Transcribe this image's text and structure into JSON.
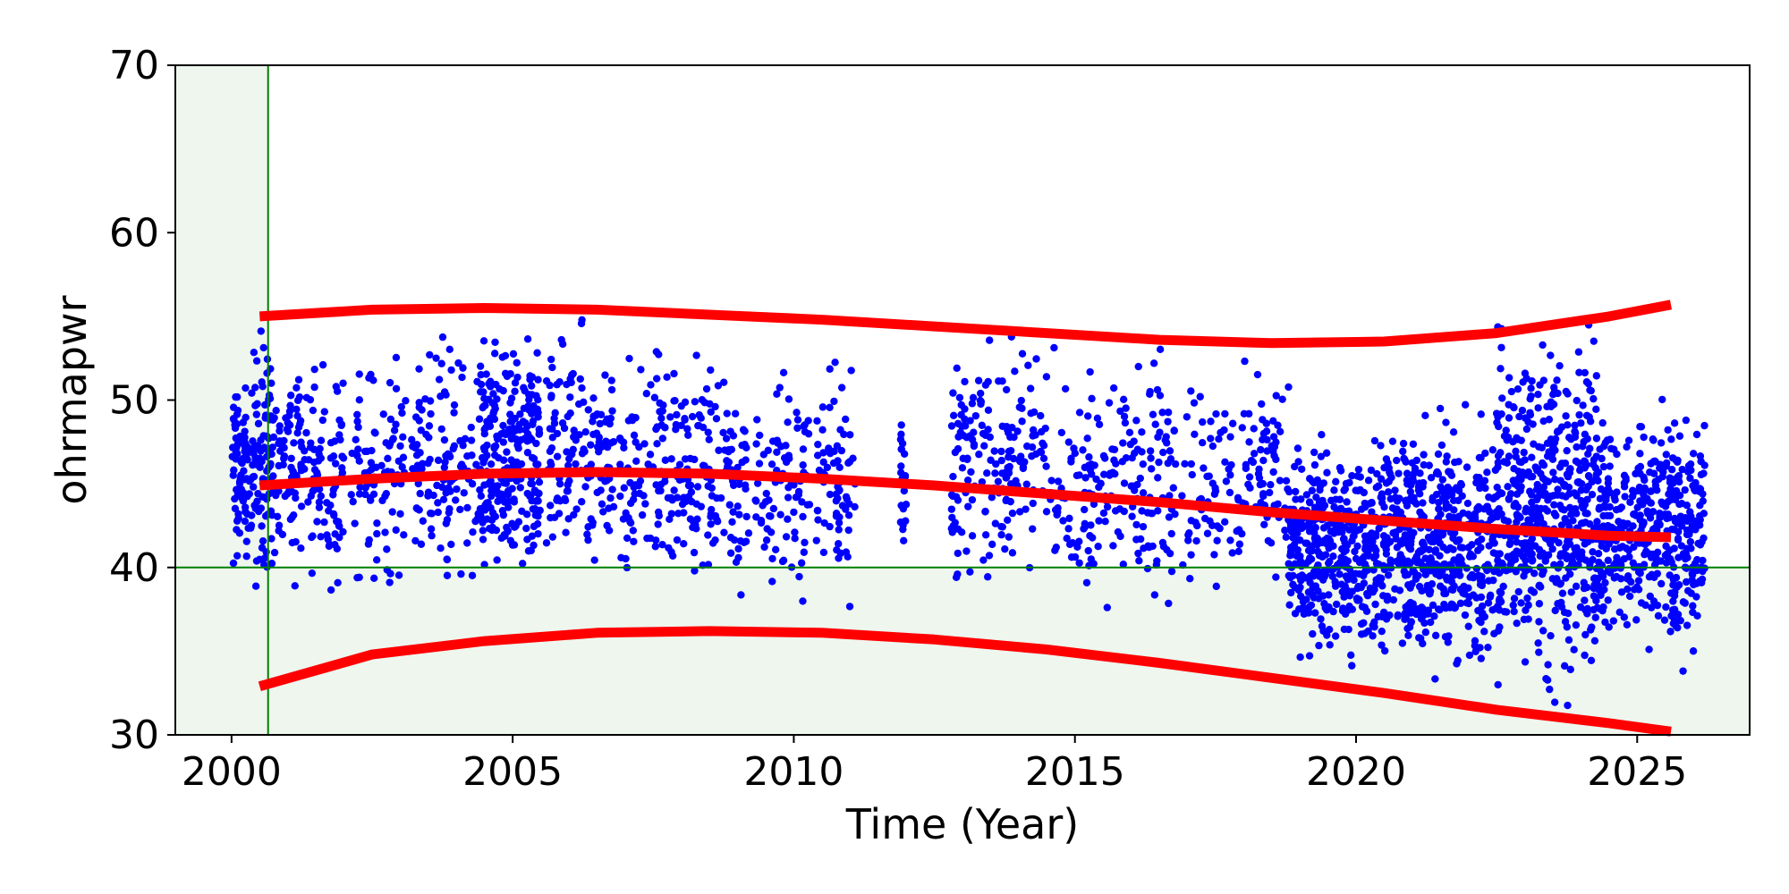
{
  "chart_data": {
    "type": "scatter",
    "title": "",
    "xlabel": "Time (Year)",
    "ylabel": "ohrmapwr",
    "xlim": [
      1999.0,
      2027.0
    ],
    "ylim": [
      30,
      70
    ],
    "x_ticks": [
      2000,
      2005,
      2010,
      2015,
      2020,
      2025
    ],
    "y_ticks": [
      30,
      40,
      50,
      60,
      70
    ],
    "x_tick_labels": [
      "2000",
      "2005",
      "2010",
      "2015",
      "2020",
      "2025"
    ],
    "y_tick_labels": [
      "30",
      "40",
      "50",
      "60",
      "70"
    ],
    "grid": false,
    "legend": "none",
    "colors": {
      "points": "#0000ff",
      "trend": "#ff0000",
      "reference_line": "#008000",
      "shaded_region": "#eef6ee"
    },
    "reference_lines": {
      "vertical_x": 2000.65,
      "horizontal_y": 40
    },
    "shaded_regions": [
      {
        "description": "x below 2000.65",
        "x": [
          1999.0,
          2000.65
        ],
        "y": [
          30,
          70
        ]
      },
      {
        "description": "y below 40",
        "x": [
          1999.0,
          2027.0
        ],
        "y": [
          30,
          40
        ]
      }
    ],
    "scatter_density": [
      {
        "x": [
          2000.0,
          2000.35
        ],
        "y": [
          38.5,
          52.5
        ],
        "n": 80
      },
      {
        "x": [
          2000.35,
          2000.7
        ],
        "y": [
          37.0,
          56.0
        ],
        "n": 90
      },
      {
        "x": [
          2000.7,
          2001.5
        ],
        "y": [
          37.5,
          55.0
        ],
        "n": 110
      },
      {
        "x": [
          2001.5,
          2002.0
        ],
        "y": [
          37.5,
          54.0
        ],
        "n": 60
      },
      {
        "x": [
          2002.1,
          2003.1
        ],
        "y": [
          37.0,
          54.5
        ],
        "n": 90
      },
      {
        "x": [
          2003.2,
          2004.4
        ],
        "y": [
          37.0,
          55.0
        ],
        "n": 120
      },
      {
        "x": [
          2004.4,
          2005.5
        ],
        "y": [
          36.5,
          56.0
        ],
        "n": 260
      },
      {
        "x": [
          2005.6,
          2006.8
        ],
        "y": [
          37.5,
          56.0
        ],
        "n": 140
      },
      {
        "x": [
          2006.9,
          2008.0
        ],
        "y": [
          37.5,
          55.0
        ],
        "n": 110
      },
      {
        "x": [
          2008.0,
          2009.2
        ],
        "y": [
          35.5,
          55.5
        ],
        "n": 130
      },
      {
        "x": [
          2009.3,
          2010.3
        ],
        "y": [
          36.0,
          54.0
        ],
        "n": 90
      },
      {
        "x": [
          2010.4,
          2011.1
        ],
        "y": [
          36.5,
          54.0
        ],
        "n": 70
      },
      {
        "x": [
          2011.9,
          2012.0
        ],
        "y": [
          38.0,
          52.0
        ],
        "n": 25
      },
      {
        "x": [
          2012.8,
          2013.9
        ],
        "y": [
          37.0,
          55.5
        ],
        "n": 130
      },
      {
        "x": [
          2013.9,
          2014.9
        ],
        "y": [
          37.5,
          55.0
        ],
        "n": 70
      },
      {
        "x": [
          2014.9,
          2016.0
        ],
        "y": [
          36.5,
          54.0
        ],
        "n": 90
      },
      {
        "x": [
          2016.0,
          2016.8
        ],
        "y": [
          35.0,
          56.0
        ],
        "n": 80
      },
      {
        "x": [
          2016.9,
          2018.0
        ],
        "y": [
          37.0,
          53.0
        ],
        "n": 70
      },
      {
        "x": [
          2018.0,
          2018.8
        ],
        "y": [
          37.0,
          54.0
        ],
        "n": 70
      },
      {
        "x": [
          2018.8,
          2020.5
        ],
        "y": [
          33.0,
          49.0
        ],
        "n": 420
      },
      {
        "x": [
          2020.5,
          2022.5
        ],
        "y": [
          31.5,
          51.0
        ],
        "n": 480
      },
      {
        "x": [
          2022.5,
          2024.3
        ],
        "y": [
          31.0,
          56.0
        ],
        "n": 520
      },
      {
        "x": [
          2024.3,
          2025.2
        ],
        "y": [
          34.0,
          50.0
        ],
        "n": 200
      },
      {
        "x": [
          2025.2,
          2026.2
        ],
        "y": [
          32.0,
          53.0
        ],
        "n": 240
      }
    ],
    "series": [
      {
        "type": "line",
        "x": [
          2000.5,
          2002.5,
          2004.5,
          2006.5,
          2008.5,
          2010.5,
          2012.5,
          2014.5,
          2016.5,
          2018.5,
          2020.5,
          2022.5,
          2024.5,
          2025.6
        ],
        "y": [
          55.0,
          55.4,
          55.5,
          55.4,
          55.1,
          54.8,
          54.4,
          54.0,
          53.6,
          53.4,
          53.5,
          54.0,
          55.0,
          55.7
        ]
      },
      {
        "type": "line",
        "x": [
          2000.5,
          2002.5,
          2004.5,
          2006.5,
          2008.5,
          2010.5,
          2012.5,
          2014.5,
          2016.5,
          2018.5,
          2020.5,
          2022.5,
          2024.5,
          2025.6
        ],
        "y": [
          44.9,
          45.3,
          45.6,
          45.7,
          45.6,
          45.3,
          44.9,
          44.4,
          43.9,
          43.3,
          42.8,
          42.3,
          41.9,
          41.8
        ]
      },
      {
        "type": "line",
        "x": [
          2000.5,
          2002.5,
          2004.5,
          2006.5,
          2008.5,
          2010.5,
          2012.5,
          2014.5,
          2016.5,
          2018.5,
          2020.5,
          2022.5,
          2024.5,
          2025.6
        ],
        "y": [
          32.9,
          34.8,
          35.6,
          36.1,
          36.2,
          36.1,
          35.7,
          35.1,
          34.3,
          33.4,
          32.5,
          31.5,
          30.7,
          30.2
        ]
      }
    ]
  }
}
